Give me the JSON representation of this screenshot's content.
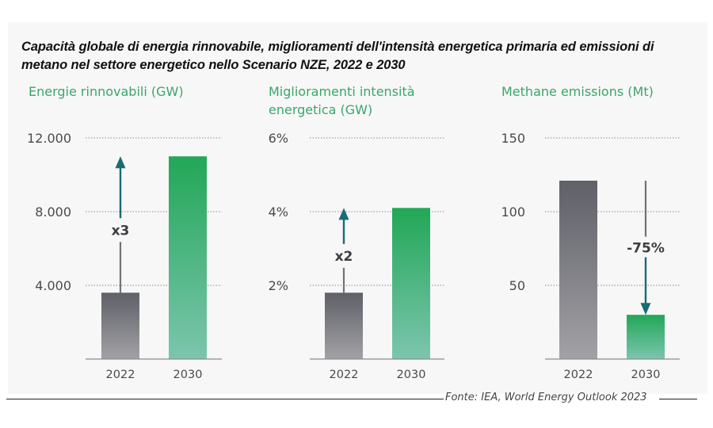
{
  "title": "Capacità globale di energia rinnovabile, miglioramenti dell'intensità energetica primaria ed emissioni di metano nel settore energetico nello Scenario NZE, 2022 e 2030",
  "source": "Fonte: IEA, World Energy Outlook 2023",
  "colors": {
    "subtitle": "#3aa56b",
    "bar_2022_top": "#5f6068",
    "bar_2022_bottom": "#a2a2a6",
    "bar_2030_top": "#22a757",
    "bar_2030_bottom": "#7cc5ae",
    "arrow": "#1a6b73"
  },
  "chart_data": [
    {
      "type": "bar",
      "title": "Energie rinnovabili (GW)",
      "categories": [
        "2022",
        "2030"
      ],
      "values": [
        3600,
        11000
      ],
      "ylim": [
        0,
        12000
      ],
      "yticks": [
        4000,
        8000,
        12000
      ],
      "ytick_labels": [
        "4.000",
        "8.000",
        "12.000"
      ],
      "grid": true,
      "annotation": {
        "text": "x3",
        "direction": "up"
      }
    },
    {
      "type": "bar",
      "title": "Miglioramenti intensità energetica (GW)",
      "categories": [
        "2022",
        "2030"
      ],
      "values": [
        1.8,
        4.1
      ],
      "ylim": [
        0,
        6
      ],
      "yticks": [
        2,
        4,
        6
      ],
      "ytick_labels": [
        "2%",
        "4%",
        "6%"
      ],
      "grid": true,
      "annotation": {
        "text": "x2",
        "direction": "up"
      }
    },
    {
      "type": "bar",
      "title": "Methane emissions (Mt)",
      "categories": [
        "2022",
        "2030"
      ],
      "values": [
        121,
        30
      ],
      "ylim": [
        0,
        150
      ],
      "yticks": [
        50,
        100,
        150
      ],
      "ytick_labels": [
        "50",
        "100",
        "150"
      ],
      "grid": true,
      "annotation": {
        "text": "-75%",
        "direction": "down"
      }
    }
  ]
}
